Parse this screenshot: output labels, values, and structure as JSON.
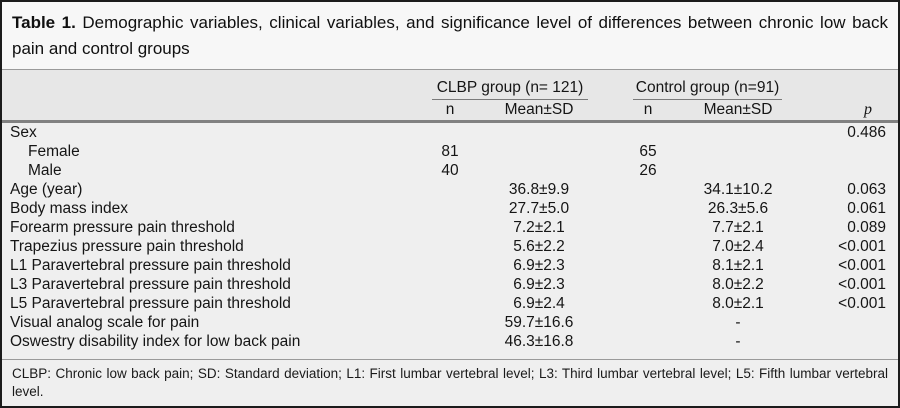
{
  "title": {
    "label": "Table 1.",
    "text": "Demographic variables, clinical variables, and significance level of differences between chronic low back pain and control groups"
  },
  "table": {
    "groups": [
      {
        "label": "CLBP group (n= 121)"
      },
      {
        "label": "Control group (n=91)"
      }
    ],
    "subheaders": {
      "n1": "n",
      "mean1": "Mean±SD",
      "n2": "n",
      "mean2": "Mean±SD",
      "p": "p"
    },
    "rows": [
      {
        "label": "Sex",
        "indent": false,
        "clbp_n": "",
        "clbp_mean": "",
        "ctrl_n": "",
        "ctrl_mean": "",
        "p": "0.486"
      },
      {
        "label": "Female",
        "indent": true,
        "clbp_n": "81",
        "clbp_mean": "",
        "ctrl_n": "65",
        "ctrl_mean": "",
        "p": ""
      },
      {
        "label": "Male",
        "indent": true,
        "clbp_n": "40",
        "clbp_mean": "",
        "ctrl_n": "26",
        "ctrl_mean": "",
        "p": ""
      },
      {
        "label": "Age (year)",
        "indent": false,
        "clbp_n": "",
        "clbp_mean": "36.8±9.9",
        "ctrl_n": "",
        "ctrl_mean": "34.1±10.2",
        "p": "0.063"
      },
      {
        "label": "Body mass index",
        "indent": false,
        "clbp_n": "",
        "clbp_mean": "27.7±5.0",
        "ctrl_n": "",
        "ctrl_mean": "26.3±5.6",
        "p": "0.061"
      },
      {
        "label": "Forearm pressure pain threshold",
        "indent": false,
        "clbp_n": "",
        "clbp_mean": "7.2±2.1",
        "ctrl_n": "",
        "ctrl_mean": "7.7±2.1",
        "p": "0.089"
      },
      {
        "label": "Trapezius pressure pain threshold",
        "indent": false,
        "clbp_n": "",
        "clbp_mean": "5.6±2.2",
        "ctrl_n": "",
        "ctrl_mean": "7.0±2.4",
        "p": "<0.001"
      },
      {
        "label": "L1 Paravertebral pressure pain threshold",
        "indent": false,
        "clbp_n": "",
        "clbp_mean": "6.9±2.3",
        "ctrl_n": "",
        "ctrl_mean": "8.1±2.1",
        "p": "<0.001"
      },
      {
        "label": "L3 Paravertebral pressure pain threshold",
        "indent": false,
        "clbp_n": "",
        "clbp_mean": "6.9±2.3",
        "ctrl_n": "",
        "ctrl_mean": "8.0±2.2",
        "p": "<0.001"
      },
      {
        "label": "L5 Paravertebral pressure pain threshold",
        "indent": false,
        "clbp_n": "",
        "clbp_mean": "6.9±2.4",
        "ctrl_n": "",
        "ctrl_mean": "8.0±2.1",
        "p": "<0.001"
      },
      {
        "label": "Visual analog scale for pain",
        "indent": false,
        "clbp_n": "",
        "clbp_mean": "59.7±16.6",
        "ctrl_n": "",
        "ctrl_mean": "-",
        "p": ""
      },
      {
        "label": "Oswestry disability index for low back pain",
        "indent": false,
        "clbp_n": "",
        "clbp_mean": "46.3±16.8",
        "ctrl_n": "",
        "ctrl_mean": "-",
        "p": ""
      }
    ]
  },
  "footnote": "CLBP: Chronic low back pain; SD: Standard deviation; L1: First lumbar vertebral level; L3: Third lumbar vertebral level; L5: Fifth lumbar vertebral level.",
  "colors": {
    "outer_border": "#1b1b1b",
    "title_bg": "#f7f7f7",
    "body_bg": "#efefef",
    "header_band_bg": "#e7e7e7",
    "thin_rule": "#9a9a9a",
    "header_rule": "#818181",
    "text": "#151515"
  }
}
